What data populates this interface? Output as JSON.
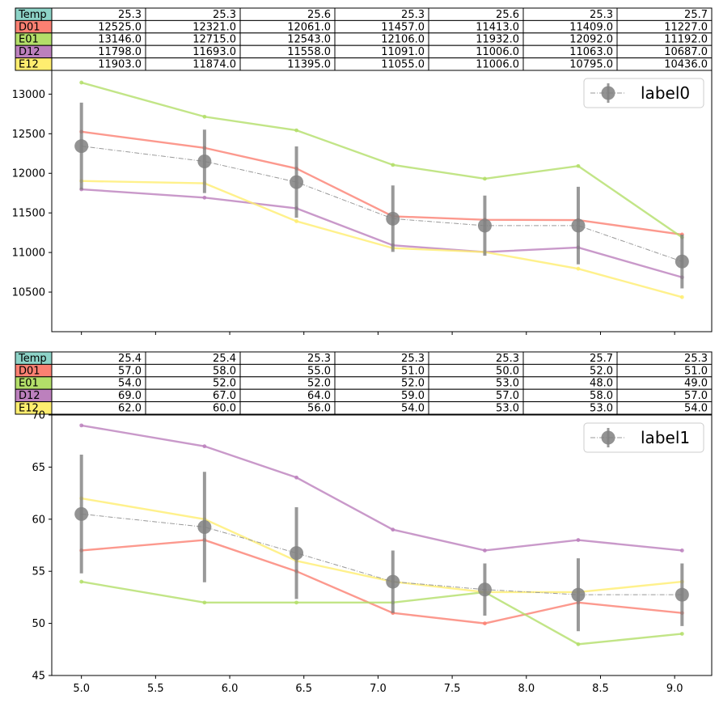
{
  "chart_data": [
    {
      "type": "line",
      "title": "",
      "xlabel": "",
      "ylabel": "",
      "xlim": [
        4.8,
        9.25
      ],
      "ylim": [
        10000,
        13300
      ],
      "yticks": [
        10500,
        11000,
        11500,
        12000,
        12500,
        13000
      ],
      "x": [
        5.0,
        5.83,
        6.45,
        7.1,
        7.72,
        8.35,
        9.05
      ],
      "table": {
        "columns_count": 7,
        "rows": [
          {
            "label": "Temp",
            "color": "#8dd3c7",
            "cells": [
              "25.3",
              "25.3",
              "25.6",
              "25.3",
              "25.6",
              "25.3",
              "25.7"
            ]
          },
          {
            "label": "D01",
            "color": "#fb8072",
            "cells": [
              "12525.0",
              "12321.0",
              "12061.0",
              "11457.0",
              "11413.0",
              "11409.0",
              "11227.0"
            ]
          },
          {
            "label": "E01",
            "color": "#b3de69",
            "cells": [
              "13146.0",
              "12715.0",
              "12543.0",
              "12106.0",
              "11932.0",
              "12092.0",
              "11192.0"
            ]
          },
          {
            "label": "D12",
            "color": "#bc80bd",
            "cells": [
              "11798.0",
              "11693.0",
              "11558.0",
              "11091.0",
              "11006.0",
              "11063.0",
              "10687.0"
            ]
          },
          {
            "label": "E12",
            "color": "#ffed6f",
            "cells": [
              "11903.0",
              "11874.0",
              "11395.0",
              "11055.0",
              "11006.0",
              "10795.0",
              "10436.0"
            ]
          }
        ]
      },
      "series": [
        {
          "name": "D01",
          "color": "#fb8072",
          "values": [
            12525,
            12321,
            12061,
            11457,
            11413,
            11409,
            11227
          ]
        },
        {
          "name": "E01",
          "color": "#b3de69",
          "values": [
            13146,
            12715,
            12543,
            12106,
            11932,
            12092,
            11192
          ]
        },
        {
          "name": "D12",
          "color": "#bc80bd",
          "values": [
            11798,
            11693,
            11558,
            11091,
            11006,
            11063,
            10687
          ]
        },
        {
          "name": "E12",
          "color": "#ffed6f",
          "values": [
            11903,
            11874,
            11395,
            11055,
            11006,
            10795,
            10436
          ]
        }
      ],
      "mean": {
        "name": "label0",
        "color": "#808080",
        "values": [
          12343,
          12151,
          11889,
          11427,
          11339,
          11340,
          10886
        ],
        "err": [
          550,
          400,
          450,
          420,
          380,
          490,
          340
        ]
      },
      "legend": {
        "label": "label0",
        "placement": "top-right"
      },
      "grid": false
    },
    {
      "type": "line",
      "title": "",
      "xlabel": "",
      "ylabel": "",
      "xlim": [
        4.8,
        9.25
      ],
      "ylim": [
        45,
        70
      ],
      "yticks": [
        45,
        50,
        55,
        60,
        65,
        70
      ],
      "xticks": [
        "5.0",
        "5.5",
        "6.0",
        "6.5",
        "7.0",
        "7.5",
        "8.0",
        "8.5",
        "9.0"
      ],
      "x": [
        5.0,
        5.83,
        6.45,
        7.1,
        7.72,
        8.35,
        9.05
      ],
      "table": {
        "columns_count": 7,
        "rows": [
          {
            "label": "Temp",
            "color": "#8dd3c7",
            "cells": [
              "25.4",
              "25.4",
              "25.3",
              "25.3",
              "25.3",
              "25.7",
              "25.3"
            ]
          },
          {
            "label": "D01",
            "color": "#fb8072",
            "cells": [
              "57.0",
              "58.0",
              "55.0",
              "51.0",
              "50.0",
              "52.0",
              "51.0"
            ]
          },
          {
            "label": "E01",
            "color": "#b3de69",
            "cells": [
              "54.0",
              "52.0",
              "52.0",
              "52.0",
              "53.0",
              "48.0",
              "49.0"
            ]
          },
          {
            "label": "D12",
            "color": "#bc80bd",
            "cells": [
              "69.0",
              "67.0",
              "64.0",
              "59.0",
              "57.0",
              "58.0",
              "57.0"
            ]
          },
          {
            "label": "E12",
            "color": "#ffed6f",
            "cells": [
              "62.0",
              "60.0",
              "56.0",
              "54.0",
              "53.0",
              "53.0",
              "54.0"
            ]
          }
        ]
      },
      "series": [
        {
          "name": "D01",
          "color": "#fb8072",
          "values": [
            57,
            58,
            55,
            51,
            50,
            52,
            51
          ]
        },
        {
          "name": "E01",
          "color": "#b3de69",
          "values": [
            54,
            52,
            52,
            52,
            53,
            48,
            49
          ]
        },
        {
          "name": "D12",
          "color": "#bc80bd",
          "values": [
            69,
            67,
            64,
            59,
            57,
            58,
            57
          ]
        },
        {
          "name": "E12",
          "color": "#ffed6f",
          "values": [
            62,
            60,
            56,
            54,
            53,
            53,
            54
          ]
        }
      ],
      "mean": {
        "name": "label1",
        "color": "#808080",
        "values": [
          60.5,
          59.25,
          56.75,
          54.0,
          53.25,
          52.75,
          52.75
        ],
        "err": [
          5.7,
          5.3,
          4.4,
          3.0,
          2.5,
          3.5,
          3.0
        ]
      },
      "legend": {
        "label": "label1",
        "placement": "top-right"
      },
      "grid": false
    }
  ]
}
